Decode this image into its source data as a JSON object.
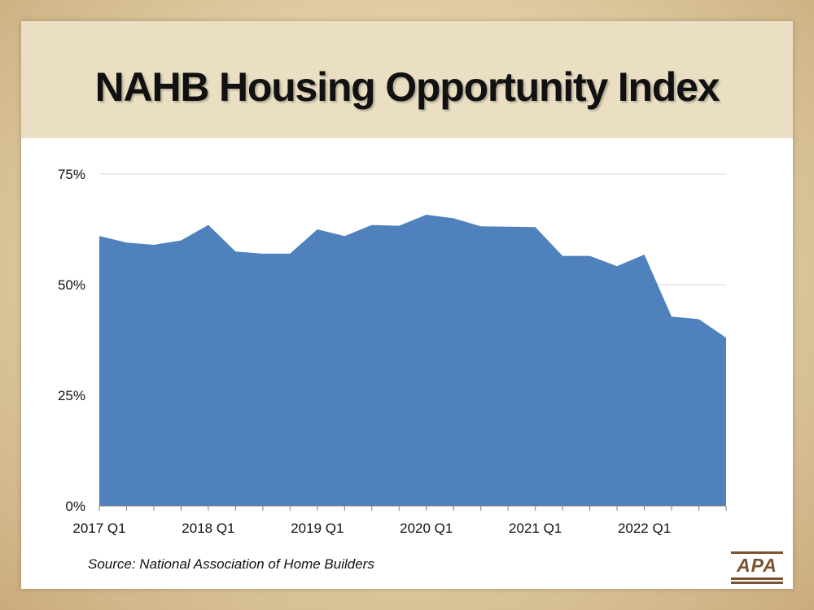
{
  "slide": {
    "title": "NAHB Housing Opportunity Index",
    "source": "Source:  National Association of Home Builders",
    "logo_text": "APA"
  },
  "colors": {
    "area_fill": "#4f81bd",
    "grid": "#d9d9d9",
    "axis": "#7f7f7f",
    "title_band": "#eadfc3"
  },
  "chart_data": {
    "type": "area",
    "title": "",
    "xlabel": "",
    "ylabel": "",
    "x": [
      "2017 Q1",
      "2017 Q2",
      "2017 Q3",
      "2017 Q4",
      "2018 Q1",
      "2018 Q2",
      "2018 Q3",
      "2018 Q4",
      "2019 Q1",
      "2019 Q2",
      "2019 Q3",
      "2019 Q4",
      "2020 Q1",
      "2020 Q2",
      "2020 Q3",
      "2020 Q4",
      "2021 Q1",
      "2021 Q2",
      "2021 Q3",
      "2021 Q4",
      "2022 Q1",
      "2022 Q2",
      "2022 Q3",
      "2022 Q4"
    ],
    "x_tick_labels": [
      "2017 Q1",
      "2018 Q1",
      "2019 Q1",
      "2020 Q1",
      "2021 Q1",
      "2022 Q1"
    ],
    "y_tick_labels": [
      "0%",
      "25%",
      "50%",
      "75%"
    ],
    "series": [
      {
        "values": [
          61.0,
          59.5,
          59.0,
          60.0,
          63.5,
          57.5,
          57.0,
          57.0,
          62.5,
          61.0,
          63.5,
          63.3,
          65.8,
          65.0,
          63.2,
          63.1,
          63.0,
          56.5,
          56.5,
          54.2,
          56.8,
          42.8,
          42.2,
          38.0
        ]
      }
    ],
    "ylim": [
      0,
      75
    ],
    "y_unit": "%",
    "grid": true,
    "legend": "none"
  }
}
